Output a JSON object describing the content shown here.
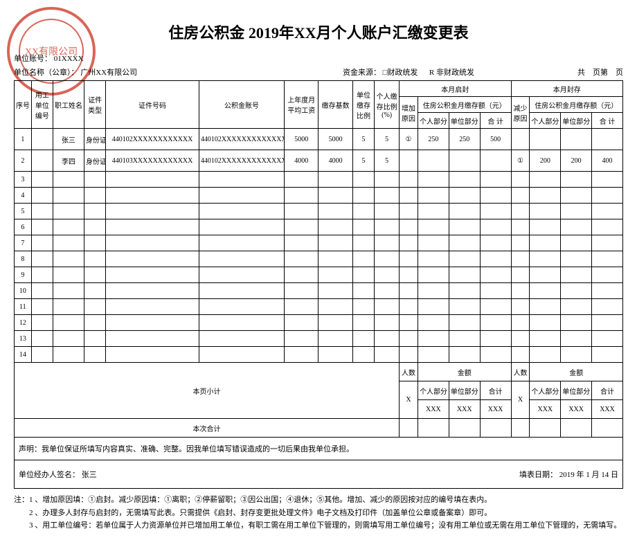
{
  "title": "住房公积金 2019年XX月个人账户汇缴变更表",
  "stamp_text": "XX有限公司",
  "meta": {
    "acct_label": "单位账号：",
    "acct_value": "01XXXX",
    "name_label": "单位名称（公章）：",
    "name_value": "广州XX有限公司",
    "source_label": "资金来源：",
    "source_opt1": "□财政统发",
    "source_opt2": "R 非财政统发",
    "pager": "共　页第　页"
  },
  "headers": {
    "seq": "序号",
    "unit": "用工单位编号",
    "name": "职工姓名",
    "idtype": "证件类型",
    "idno": "证件号码",
    "acct": "公积金账号",
    "prev": "上年度月平均工资",
    "base": "缴存基数",
    "urate": "单位缴存比例",
    "prate": "个人缴存比例(%)",
    "inc_group": "本月启封",
    "dec_group": "本月封存",
    "ireason": "增加原因",
    "dreason": "减少原因",
    "pay_group": "住房公积金月缴存额（元）",
    "pers": "个人部分",
    "unitpart": "单位部分",
    "total": "合 计"
  },
  "rows": [
    {
      "seq": "1",
      "unit": "",
      "name": "张三",
      "idtype": "身份证",
      "idno": "440102XXXXXXXXXXXX",
      "acct": "440102XXXXXXXXXXXXX00",
      "prev": "5000",
      "base": "5000",
      "urate": "5",
      "prate": "5",
      "ireason": "①",
      "ipers": "250",
      "iunit": "250",
      "itot": "500",
      "dreason": "",
      "dpers": "",
      "dunit": "",
      "dtot": ""
    },
    {
      "seq": "2",
      "unit": "",
      "name": "李四",
      "idtype": "身份证",
      "idno": "440103XXXXXXXXXXXX",
      "acct": "440102XXXXXXXXXXXXX00",
      "prev": "4000",
      "base": "4000",
      "urate": "5",
      "prate": "5",
      "ireason": "",
      "ipers": "",
      "iunit": "",
      "itot": "",
      "dreason": "①",
      "dpers": "200",
      "dunit": "200",
      "dtot": "400"
    },
    {
      "seq": "3"
    },
    {
      "seq": "4"
    },
    {
      "seq": "5"
    },
    {
      "seq": "6"
    },
    {
      "seq": "7"
    },
    {
      "seq": "8"
    },
    {
      "seq": "9"
    },
    {
      "seq": "10"
    },
    {
      "seq": "11"
    },
    {
      "seq": "12"
    },
    {
      "seq": "13"
    },
    {
      "seq": "14"
    }
  ],
  "subtotal": {
    "label": "本页小计",
    "count_label": "人数",
    "amount_label": "金额",
    "count": "X",
    "pers": "个人部分",
    "unitpart": "单位部分",
    "total": "合计",
    "val": "XXX"
  },
  "grand": {
    "label": "本次合计"
  },
  "declaration": "声明：我单位保证所填写内容真实、准确、完整。因我单位填写错误造成的一切后果由我单位承担。",
  "sign": {
    "left_label": "单位经办人签名：",
    "left_value": "张三",
    "right_label": "填表日期：",
    "right_value": "2019 年  1 月  14 日"
  },
  "notes": {
    "n1": "注：1 、增加原因填：①启封。减少原因填：①离职；②停薪留职；③因公出国；④退休；⑤其他。增加、减少的原因按对应的编号填在表内。",
    "n2": "　　2 、办理多人封存与启封的，无需填写此表。只需提供《启封、封存变更批处理文件》电子文档及打印件（加盖单位公章或备案章）即可。",
    "n3": "　　3 、用工单位编号：若单位属于人力资源单位并已增加用工单位，有职工需在用工单位下管理的，则需填写用工单位编号；没有用工单位或无需在用工单位下管理的，无需填写。"
  }
}
